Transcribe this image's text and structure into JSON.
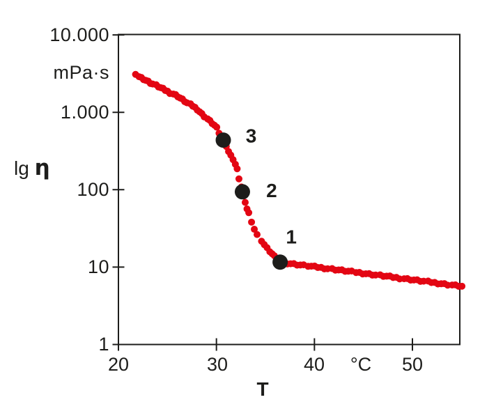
{
  "figure": {
    "background": "#ffffff",
    "y_axis": {
      "label_prefix": "lg",
      "label_symbol": "η",
      "unit_label": "mPa·s",
      "scale": "log",
      "ticks": [
        "10.000",
        "1.000",
        "100",
        "10",
        "1"
      ]
    },
    "x_axis": {
      "label": "T",
      "unit_label": "°C",
      "ticks": [
        "20",
        "30",
        "40",
        "50"
      ]
    }
  },
  "chart_data": {
    "type": "scatter",
    "title": "",
    "xlabel": "T",
    "x_unit": "°C",
    "ylabel": "lg η",
    "y_unit": "mPa·s",
    "y_scale": "log",
    "x_range": [
      20,
      55.1
    ],
    "y_range": [
      1,
      10000
    ],
    "x_ticks": [
      20,
      30,
      40,
      50
    ],
    "y_ticks": [
      1,
      10,
      100,
      1000,
      10000
    ],
    "grid": false,
    "axis_color": "#1d1d1b",
    "series": [
      {
        "name": "viscosity-curve",
        "type": "scatter",
        "color": "#e30613",
        "marker_radius": 5,
        "points": [
          [
            21.8,
            3020
          ],
          [
            22.05,
            2910
          ],
          [
            22.3,
            2800
          ],
          [
            22.55,
            2700
          ],
          [
            22.8,
            2600
          ],
          [
            23.05,
            2500
          ],
          [
            23.3,
            2400
          ],
          [
            23.55,
            2320
          ],
          [
            23.8,
            2230
          ],
          [
            24.05,
            2150
          ],
          [
            24.3,
            2070
          ],
          [
            24.55,
            2000
          ],
          [
            24.8,
            1930
          ],
          [
            25.05,
            1860
          ],
          [
            25.3,
            1790
          ],
          [
            25.55,
            1730
          ],
          [
            25.8,
            1670
          ],
          [
            26.05,
            1610
          ],
          [
            26.3,
            1530
          ],
          [
            26.55,
            1460
          ],
          [
            26.8,
            1390
          ],
          [
            27.05,
            1320
          ],
          [
            27.3,
            1260
          ],
          [
            27.55,
            1210
          ],
          [
            27.8,
            1150
          ],
          [
            28.05,
            1090
          ],
          [
            28.3,
            1020
          ],
          [
            28.55,
            950
          ],
          [
            28.8,
            890
          ],
          [
            29.05,
            822
          ],
          [
            29.3,
            771
          ],
          [
            29.55,
            723
          ],
          [
            29.8,
            678
          ],
          [
            30.05,
            628
          ],
          [
            30.3,
            541
          ],
          [
            30.55,
            476
          ],
          [
            30.95,
            370
          ],
          [
            31.2,
            313
          ],
          [
            31.45,
            276
          ],
          [
            31.7,
            249
          ],
          [
            31.95,
            213
          ],
          [
            32.15,
            183
          ],
          [
            32.35,
            140
          ],
          [
            32.5,
            108
          ],
          [
            32.9,
            67
          ],
          [
            33.1,
            57
          ],
          [
            33.3,
            50
          ],
          [
            33.6,
            39
          ],
          [
            33.9,
            31
          ],
          [
            34.2,
            26
          ],
          [
            34.55,
            22
          ],
          [
            34.85,
            19.5
          ],
          [
            35.15,
            17.5
          ],
          [
            35.45,
            16
          ],
          [
            35.7,
            14.8
          ],
          [
            35.95,
            13.7
          ],
          [
            36.2,
            12.7
          ],
          [
            36.85,
            11.4
          ],
          [
            37.2,
            11.25
          ],
          [
            37.55,
            11.1
          ],
          [
            37.9,
            10.95
          ],
          [
            38.25,
            10.8
          ],
          [
            38.6,
            10.66
          ],
          [
            38.95,
            10.52
          ],
          [
            39.3,
            10.37
          ],
          [
            39.65,
            10.23
          ],
          [
            40,
            10.1
          ],
          [
            40.35,
            9.96
          ],
          [
            40.7,
            9.83
          ],
          [
            41.05,
            9.7
          ],
          [
            41.4,
            9.57
          ],
          [
            41.75,
            9.44
          ],
          [
            42.1,
            9.31
          ],
          [
            42.45,
            9.18
          ],
          [
            42.8,
            9.06
          ],
          [
            43.15,
            8.94
          ],
          [
            43.5,
            8.82
          ],
          [
            43.85,
            8.7
          ],
          [
            44.2,
            8.58
          ],
          [
            44.55,
            8.47
          ],
          [
            44.9,
            8.35
          ],
          [
            45.25,
            8.24
          ],
          [
            45.6,
            8.13
          ],
          [
            45.95,
            8.02
          ],
          [
            46.3,
            7.91
          ],
          [
            46.65,
            7.81
          ],
          [
            47,
            7.7
          ],
          [
            47.35,
            7.6
          ],
          [
            47.7,
            7.5
          ],
          [
            48.05,
            7.4
          ],
          [
            48.4,
            7.3
          ],
          [
            48.75,
            7.2
          ],
          [
            49.1,
            7.1
          ],
          [
            49.45,
            7.01
          ],
          [
            49.8,
            6.91
          ],
          [
            50.15,
            6.82
          ],
          [
            50.5,
            6.73
          ],
          [
            50.85,
            6.64
          ],
          [
            51.2,
            6.55
          ],
          [
            51.55,
            6.46
          ],
          [
            51.9,
            6.37
          ],
          [
            52.25,
            6.29
          ],
          [
            52.6,
            6.2
          ],
          [
            52.95,
            6.12
          ],
          [
            53.3,
            6.04
          ],
          [
            53.65,
            5.95
          ],
          [
            54,
            5.87
          ],
          [
            54.35,
            5.79
          ],
          [
            54.7,
            5.72
          ],
          [
            55.05,
            5.64
          ]
        ]
      },
      {
        "name": "highlighted-points",
        "type": "scatter",
        "color": "#1d1d1b",
        "marker_radius": 11,
        "labels": [
          "1",
          "2",
          "3"
        ],
        "points": [
          [
            36.5,
            11.6
          ],
          [
            32.65,
            94
          ],
          [
            30.7,
            437
          ]
        ]
      }
    ]
  }
}
